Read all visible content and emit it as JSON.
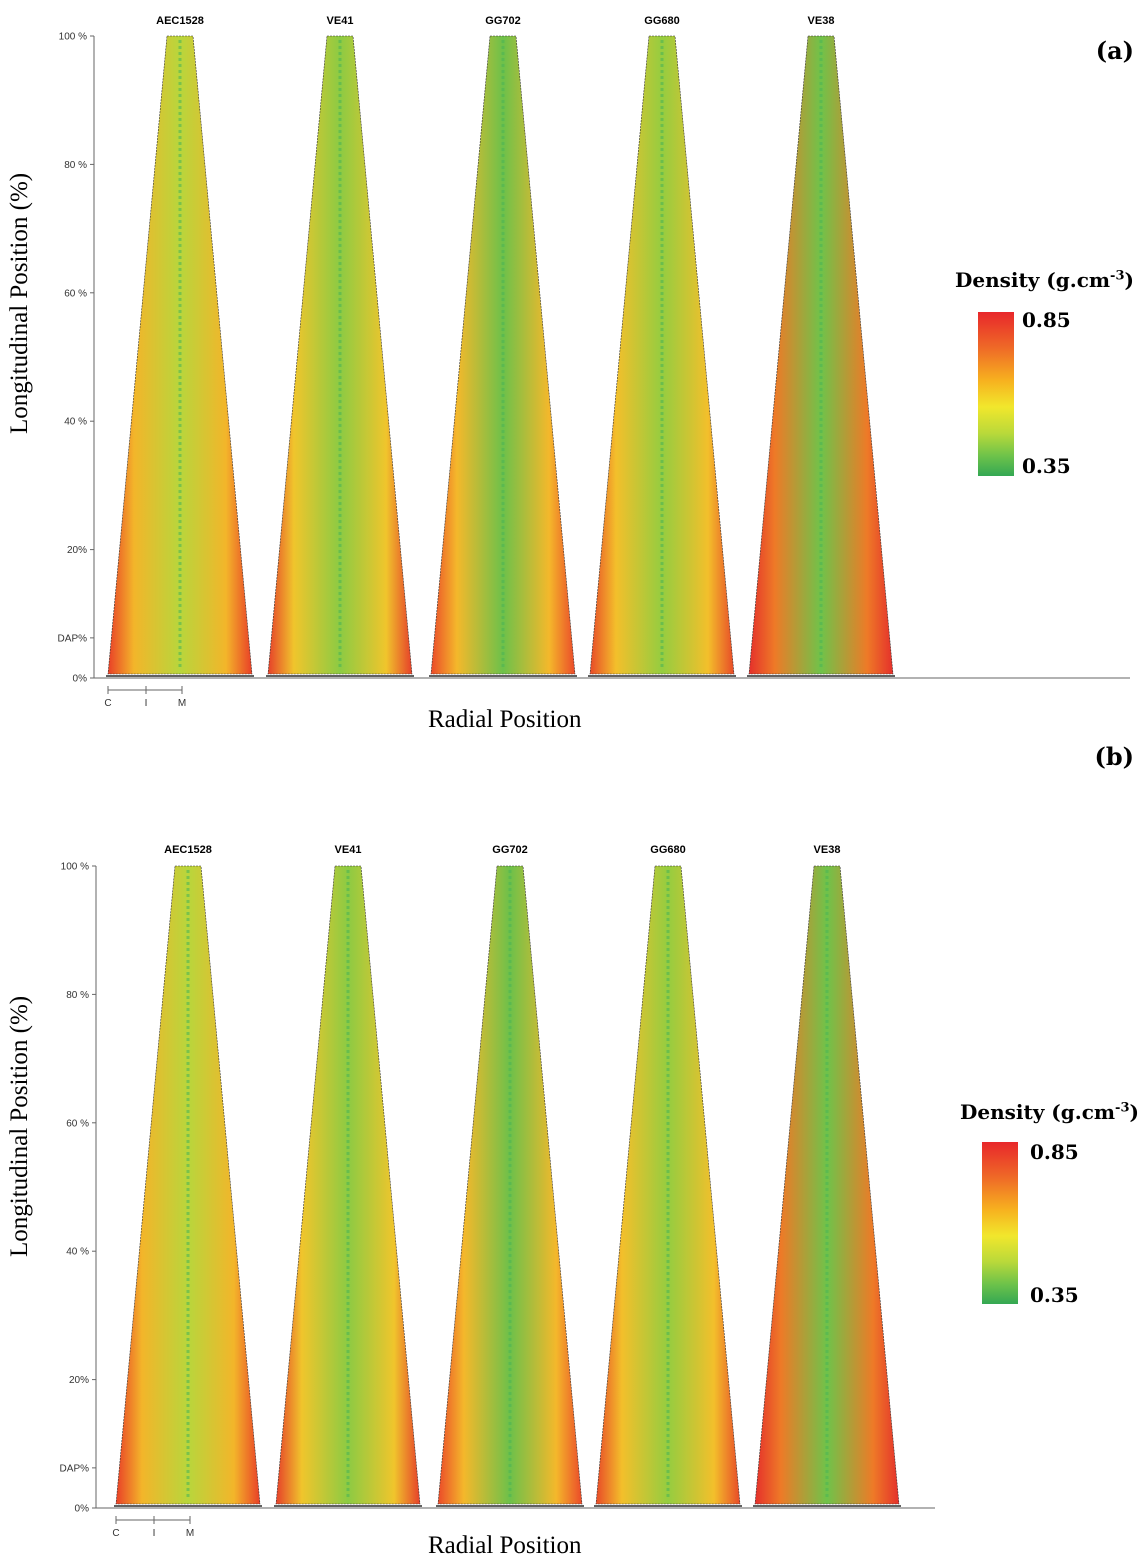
{
  "colors": {
    "low": "#34a853",
    "mid": "#f1e72c",
    "high": "#e8272b"
  },
  "chart_data": [
    {
      "type": "heatmap",
      "panel_label": "(a)",
      "ylabel": "Longitudinal Position (%)",
      "xlabel": "Radial Position",
      "y_ticks": [
        "100 %",
        "80 %",
        "60 %",
        "40 %",
        "20%",
        "DAP%",
        "0%"
      ],
      "x_ticks": [
        "C",
        "I",
        "M"
      ],
      "species": [
        "AEC1528",
        "VE41",
        "GG702",
        "GG680",
        "VE38"
      ],
      "colorbar": {
        "title": "Density (g.cm",
        "title_sup": "-3",
        "title_end": ")",
        "max": "0.85",
        "min": "0.35",
        "range": [
          0.35,
          0.85
        ]
      }
    },
    {
      "type": "heatmap",
      "panel_label": "(b)",
      "ylabel": "Longitudinal Position (%)",
      "xlabel": "Radial Position",
      "y_ticks": [
        "100 %",
        "80 %",
        "60 %",
        "40 %",
        "20%",
        "DAP%",
        "0%"
      ],
      "x_ticks": [
        "C",
        "I",
        "M"
      ],
      "species": [
        "AEC1528",
        "VE41",
        "GG702",
        "GG680",
        "VE38"
      ],
      "colorbar": {
        "title": "Density (g.cm",
        "title_sup": "-3",
        "title_end": ")",
        "max": "0.85",
        "min": "0.35",
        "range": [
          0.35,
          0.85
        ]
      }
    }
  ]
}
